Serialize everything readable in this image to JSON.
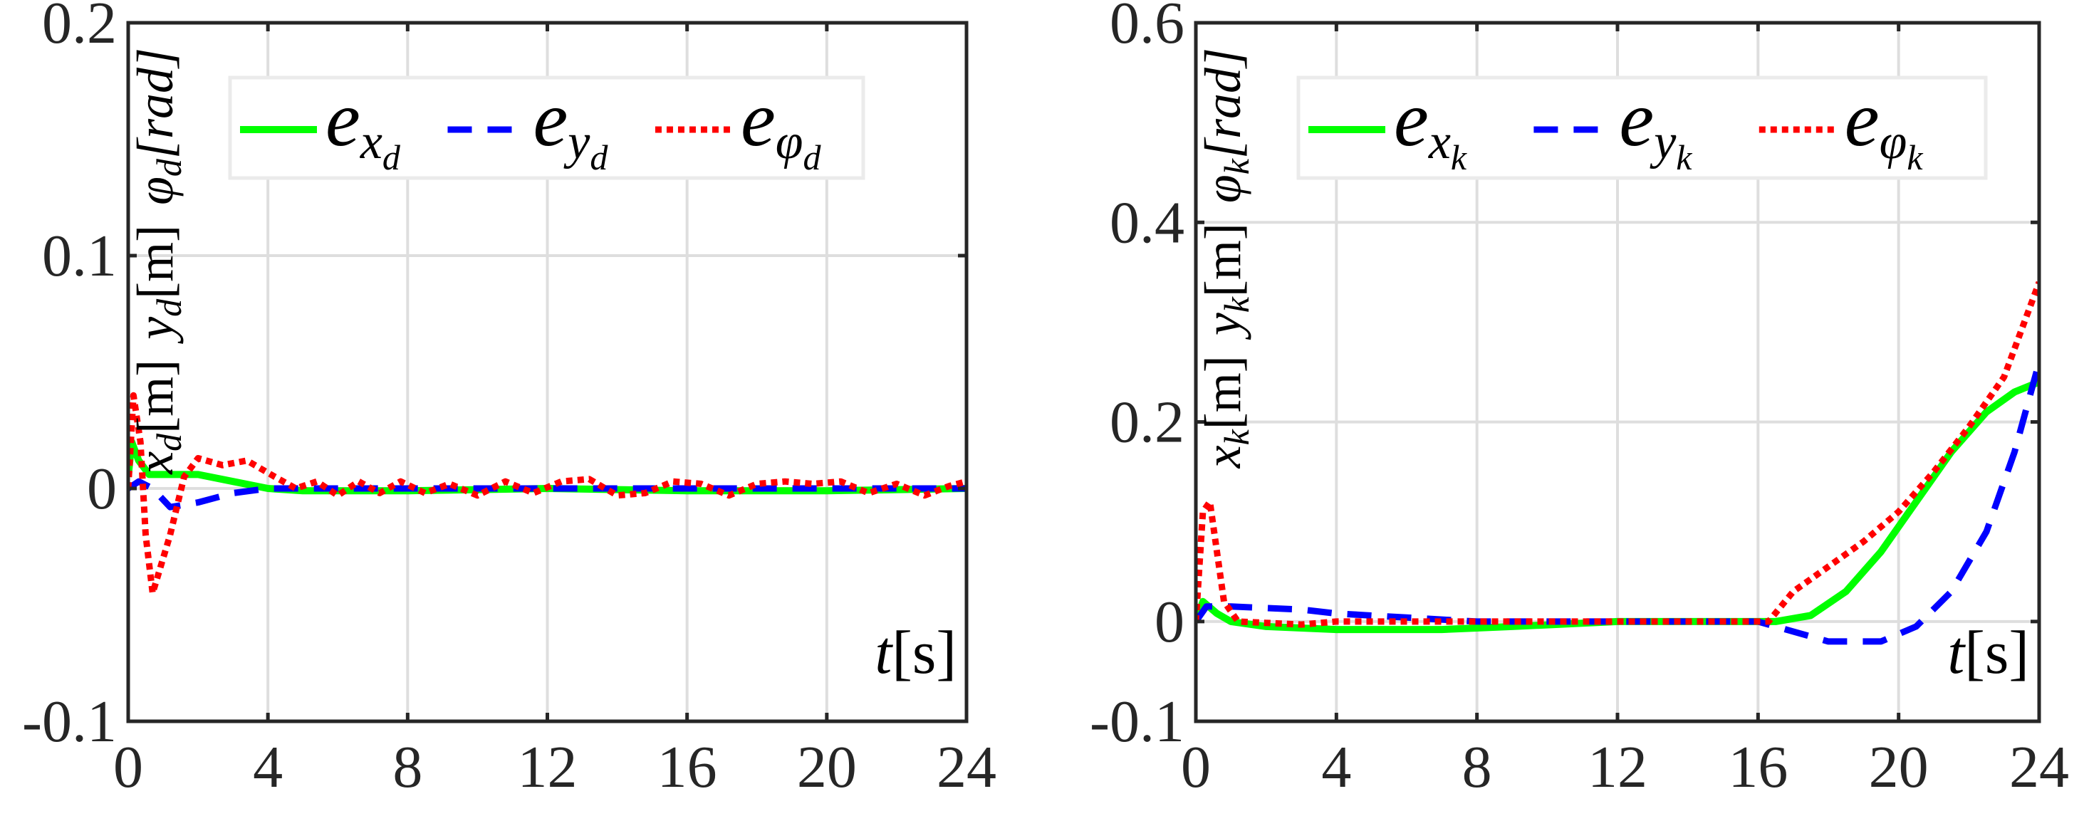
{
  "chart_data": [
    {
      "type": "line",
      "xlabel": {
        "var": "t",
        "unit": "[s]"
      },
      "ylabel": [
        {
          "var": "x",
          "sub": "d",
          "unit": "[m]"
        },
        {
          "var": "y",
          "sub": "d",
          "unit": "[m]"
        },
        {
          "var": "φ",
          "sub": "d",
          "unit": "[rad]"
        }
      ],
      "xlim": [
        0,
        24
      ],
      "ylim": [
        -0.1,
        0.2
      ],
      "xticks": [
        "0",
        "4",
        "8",
        "12",
        "16",
        "20",
        "24"
      ],
      "xtick_values": [
        0,
        4,
        8,
        12,
        16,
        20,
        24
      ],
      "yticks": [
        "-0.1",
        "0",
        "0.1",
        "0.2"
      ],
      "ytick_values": [
        -0.1,
        0,
        0.1,
        0.2
      ],
      "grid": true,
      "legend_placement": "top",
      "series": [
        {
          "name": "e_x_d",
          "label": {
            "main": "e",
            "sub": "x",
            "subsub": "d"
          },
          "color": "#00ff00",
          "style": "solid",
          "x": [
            0,
            0.1,
            0.3,
            0.6,
            1.0,
            2.0,
            3.0,
            4.0,
            5,
            8,
            12,
            16,
            20,
            24
          ],
          "y": [
            0.005,
            0.02,
            0.012,
            0.006,
            0.006,
            0.006,
            0.003,
            0.0,
            -0.001,
            -0.001,
            0,
            -0.001,
            -0.001,
            0
          ]
        },
        {
          "name": "e_y_d",
          "label": {
            "main": "e",
            "sub": "y",
            "subsub": "d"
          },
          "color": "#0000ff",
          "style": "dashed",
          "x": [
            0,
            0.3,
            0.7,
            1.2,
            2.0,
            3.0,
            4.0,
            8,
            12,
            16,
            20,
            24
          ],
          "y": [
            0,
            0.003,
            0,
            -0.008,
            -0.006,
            -0.002,
            0,
            0,
            0,
            0,
            0,
            0
          ]
        },
        {
          "name": "e_phi_d",
          "label": {
            "main": "e",
            "sub": "φ",
            "subsub": "d"
          },
          "color": "#ff0000",
          "style": "dotted",
          "x": [
            0,
            0.15,
            0.35,
            0.5,
            0.7,
            0.9,
            1.2,
            1.6,
            2.0,
            2.7,
            3.4,
            4.2,
            4.8,
            5.4,
            6.0,
            6.6,
            7.2,
            7.8,
            8.5,
            9.2,
            10,
            10.8,
            11.6,
            12.4,
            13.2,
            14,
            14.8,
            15.6,
            16.4,
            17.2,
            18,
            18.8,
            19.6,
            20.4,
            21.2,
            22,
            22.8,
            23.5,
            24
          ],
          "y": [
            0,
            0.04,
            0.02,
            -0.02,
            -0.045,
            -0.035,
            -0.02,
            0.005,
            0.013,
            0.01,
            0.012,
            0.005,
            0,
            0.003,
            -0.003,
            0.003,
            -0.002,
            0.003,
            -0.002,
            0.002,
            -0.003,
            0.003,
            -0.002,
            0.003,
            0.004,
            -0.003,
            -0.002,
            0.003,
            0.002,
            -0.003,
            0.002,
            0.003,
            0.002,
            0.003,
            -0.002,
            0.002,
            -0.003,
            0.001,
            0.003
          ]
        }
      ]
    },
    {
      "type": "line",
      "xlabel": {
        "var": "t",
        "unit": "[s]"
      },
      "ylabel": [
        {
          "var": "x",
          "sub": "k",
          "unit": "[m]"
        },
        {
          "var": "y",
          "sub": "k",
          "unit": "[m]"
        },
        {
          "var": "φ",
          "sub": "k",
          "unit": "[rad]"
        }
      ],
      "xlim": [
        0,
        24
      ],
      "ylim": [
        -0.1,
        0.6
      ],
      "xticks": [
        "0",
        "4",
        "8",
        "12",
        "16",
        "20",
        "24"
      ],
      "xtick_values": [
        0,
        4,
        8,
        12,
        16,
        20,
        24
      ],
      "yticks": [
        "-0.1",
        "0",
        "0.2",
        "0.4",
        "0.6"
      ],
      "ytick_values": [
        -0.1,
        0,
        0.2,
        0.4,
        0.6
      ],
      "grid": true,
      "legend_placement": "top",
      "series": [
        {
          "name": "e_x_k",
          "label": {
            "main": "e",
            "sub": "x",
            "subsub": "k"
          },
          "color": "#00ff00",
          "style": "solid",
          "x": [
            0,
            0.2,
            0.6,
            1.0,
            2,
            4,
            7,
            9,
            12,
            16.5,
            17.5,
            18.5,
            19.5,
            20.5,
            21.5,
            22.5,
            23.3,
            24
          ],
          "y": [
            0,
            0.02,
            0.008,
            0,
            -0.005,
            -0.008,
            -0.008,
            -0.005,
            0,
            0,
            0.006,
            0.03,
            0.07,
            0.12,
            0.17,
            0.21,
            0.23,
            0.24
          ]
        },
        {
          "name": "e_y_k",
          "label": {
            "main": "e",
            "sub": "y",
            "subsub": "k"
          },
          "color": "#0000ff",
          "style": "dashed",
          "x": [
            0,
            0.3,
            1,
            3,
            4,
            6,
            8,
            12,
            16,
            17,
            18,
            19.5,
            20.5,
            21.5,
            22.5,
            23.3,
            24
          ],
          "y": [
            0,
            0.015,
            0.015,
            0.012,
            0.008,
            0.004,
            0,
            0,
            0,
            -0.01,
            -0.02,
            -0.02,
            -0.005,
            0.03,
            0.09,
            0.17,
            0.26
          ]
        },
        {
          "name": "e_phi_k",
          "label": {
            "main": "e",
            "sub": "φ",
            "subsub": "k"
          },
          "color": "#ff0000",
          "style": "dotted",
          "x": [
            0,
            0.2,
            0.4,
            0.8,
            1.2,
            3,
            4,
            6,
            8,
            12,
            16.3,
            17,
            18,
            19,
            20,
            21,
            22,
            23,
            24
          ],
          "y": [
            0,
            0.11,
            0.12,
            0.02,
            0,
            -0.003,
            0,
            0,
            0,
            0,
            0,
            0.03,
            0.055,
            0.08,
            0.11,
            0.15,
            0.195,
            0.245,
            0.34
          ]
        }
      ]
    }
  ]
}
